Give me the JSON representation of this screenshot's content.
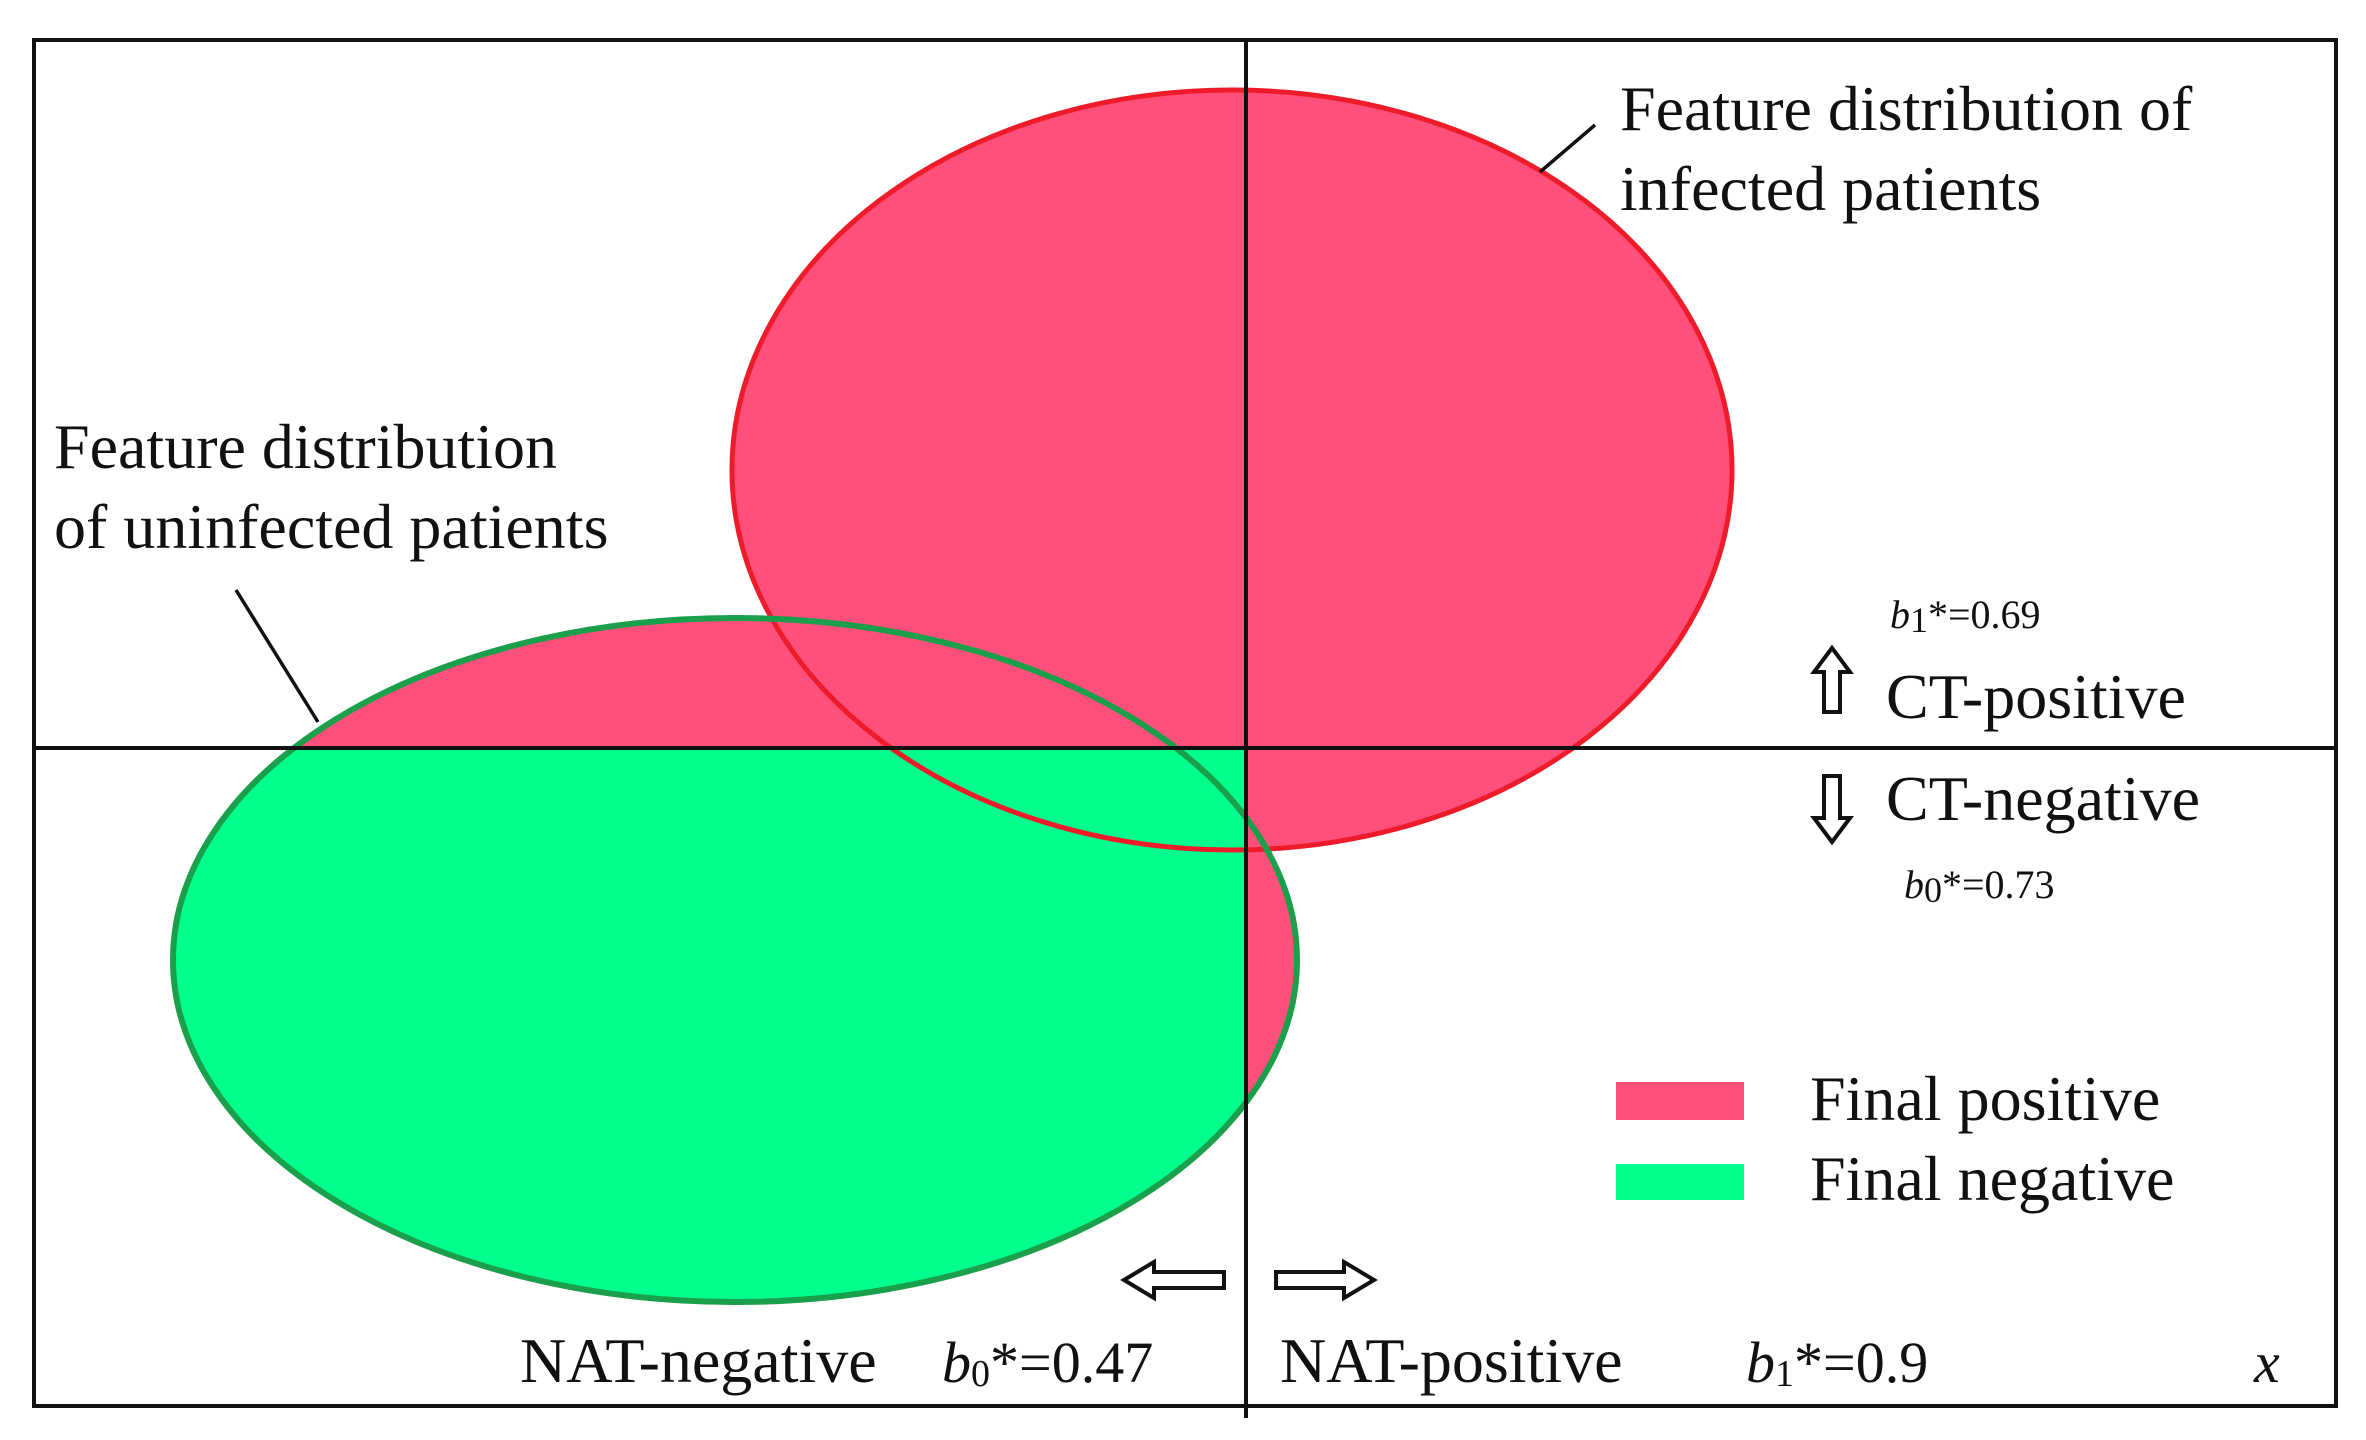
{
  "colors": {
    "infected_fill": "#FF4F7B",
    "infected_stroke": "#EE1C2A",
    "uninfected_fill": "#00FF8C",
    "uninfected_stroke": "#1AA04A",
    "axis": "#111111"
  },
  "labels": {
    "infected_dist_line1": "Feature distribution of",
    "infected_dist_line2": "infected patients",
    "uninfected_dist_line1": "Feature distribution",
    "uninfected_dist_line2": "of uninfected patients",
    "ct_b1_symbol": "b",
    "ct_b1_sub": "1",
    "ct_b1_value": "*=0.69",
    "ct_positive": "CT-positive",
    "ct_negative": "CT-negative",
    "ct_b0_symbol": "b",
    "ct_b0_sub": "0",
    "ct_b0_value": "*=0.73",
    "nat_negative": "NAT-negative",
    "nat_b0_symbol": "b",
    "nat_b0_sub": "0",
    "nat_b0_value": "*=0.47",
    "nat_positive": "NAT-positive",
    "nat_b1_symbol": "b",
    "nat_b1_sub": "1",
    "nat_b1_value": "*=0.9",
    "x_axis": "x"
  },
  "legend": {
    "final_positive": "Final positive",
    "final_negative": "Final negative"
  }
}
